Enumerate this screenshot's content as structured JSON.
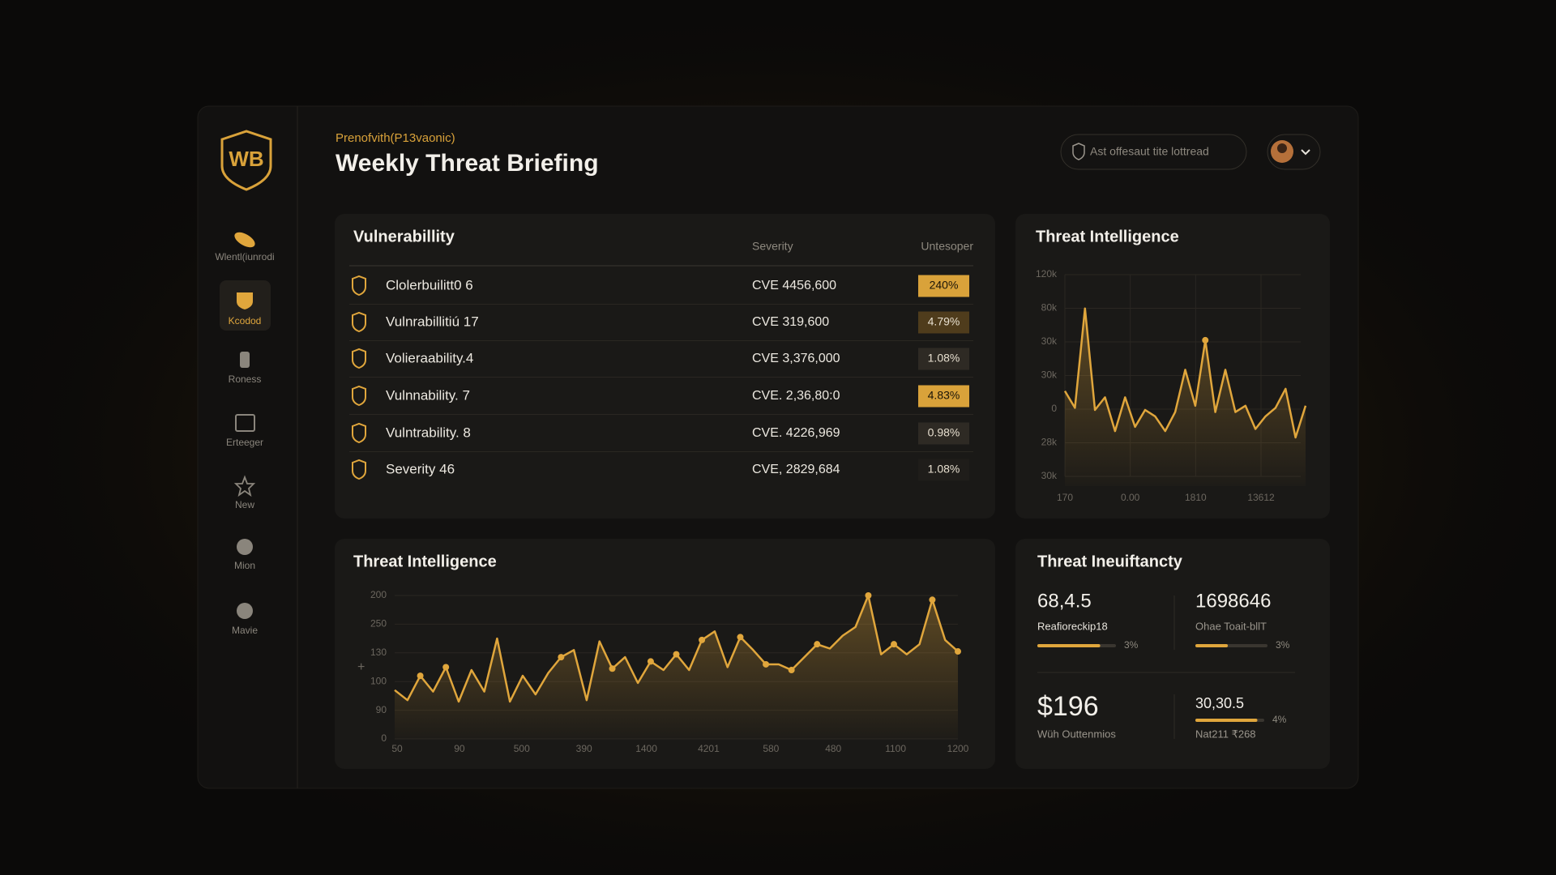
{
  "sidebar": {
    "logo": "WB",
    "items": [
      "Wlentl(iunrodi",
      "Kcodod",
      "Roness",
      "Erteeger",
      "New",
      "Mion",
      "Mavie"
    ],
    "active": 1
  },
  "header": {
    "eyebrow": "Prenofvith(P13vaonic)",
    "title": "Weekly Threat Briefing",
    "search": "Ast offesaut tite lottread"
  },
  "vulnerability_table": {
    "title": "Vulnerabillity",
    "columns": [
      "Severity",
      "Untesoper"
    ],
    "rows": [
      {
        "name": "Clolerbuilitt0 6",
        "cve": "CVE 4456,600",
        "share": "240%",
        "badge": "bright"
      },
      {
        "name": "Vulnrabillitiú 17",
        "cve": "CVE 319,600",
        "share": "4.79%",
        "badge": "mid"
      },
      {
        "name": "Volieraability.4",
        "cve": "CVE 3,376,000",
        "share": "1.08%",
        "badge": "dark"
      },
      {
        "name": "Vulnnability. 7",
        "cve": "CVE. 2,36,80:0",
        "share": "4.83%",
        "badge": "bright"
      },
      {
        "name": "Vulntrability. 8",
        "cve": "CVE. 4226,969",
        "share": "0.98%",
        "badge": "dark"
      },
      {
        "name": "Severity 46",
        "cve": "CVE, 2829,684",
        "share": "1.08%",
        "badge": "darker"
      }
    ]
  },
  "threat_intelligence_small": {
    "type": "line",
    "title": "Threat Intelligence",
    "y_labels": [
      "120k",
      "80k",
      "30k",
      "30k",
      "0",
      "28k",
      "30k"
    ],
    "x_labels": [
      "170",
      "0.00",
      "1810",
      "13612"
    ],
    "values": [
      45,
      37,
      84,
      36,
      42,
      26,
      42,
      28,
      36,
      33,
      26,
      35,
      55,
      38,
      69,
      35,
      55,
      35,
      38,
      27,
      33,
      37,
      46,
      23,
      38
    ],
    "ylim": [
      0,
      100
    ],
    "color": "#e0a63c",
    "marker_points": [
      14
    ]
  },
  "threat_intelligence_large": {
    "type": "line",
    "title": "Threat Intelligence",
    "y_labels": [
      "200",
      "250",
      "130",
      "100",
      "90",
      "0"
    ],
    "x_labels": [
      "50",
      "90",
      "500",
      "390",
      "1400",
      "4201",
      "580",
      "480",
      "1100",
      "1200"
    ],
    "values": [
      34,
      27,
      44,
      33,
      50,
      26,
      48,
      33,
      70,
      26,
      44,
      31,
      46,
      57,
      62,
      27,
      68,
      49,
      57,
      39,
      54,
      48,
      59,
      48,
      69,
      75,
      50,
      71,
      62,
      52,
      52,
      48,
      57,
      66,
      63,
      72,
      78,
      100,
      59,
      66,
      59,
      66,
      97,
      69,
      61
    ],
    "ylim": [
      0,
      100
    ],
    "color": "#e0a63c",
    "marker_points": [
      2,
      4,
      13,
      17,
      20,
      22,
      24,
      27,
      29,
      31,
      33,
      37,
      39,
      42,
      44
    ]
  },
  "threat_inefficiency": {
    "title": "Threat Ineuiftancty",
    "stats": [
      {
        "value": "68,4.5",
        "label": "Reafioreckip18",
        "pct": "3%",
        "progress": 80
      },
      {
        "value": "1698646",
        "label": "Ohae Toait-bllT",
        "pct": "3%",
        "progress": 45
      },
      {
        "value": "$196",
        "label": "Wüh Outtenmios"
      },
      {
        "value": "30,30.5",
        "label": "Nat211 ₹268",
        "pct": "4%",
        "progress": 90
      }
    ]
  }
}
